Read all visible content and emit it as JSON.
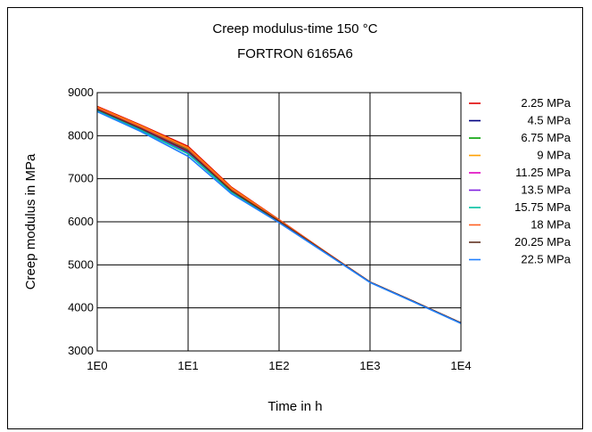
{
  "chart_data": {
    "type": "line",
    "title": "Creep modulus-time 150 °C",
    "subtitle": "FORTRON 6165A6",
    "xlabel": "Time in h",
    "ylabel": "Creep modulus in MPa",
    "x_scale": "log",
    "xlim": [
      1,
      10000
    ],
    "ylim": [
      3000,
      9000
    ],
    "x_ticks": [
      {
        "value": 1,
        "label": "1E0"
      },
      {
        "value": 10,
        "label": "1E1"
      },
      {
        "value": 100,
        "label": "1E2"
      },
      {
        "value": 1000,
        "label": "1E3"
      },
      {
        "value": 10000,
        "label": "1E4"
      }
    ],
    "y_ticks": [
      {
        "value": 3000,
        "label": "3000"
      },
      {
        "value": 4000,
        "label": "4000"
      },
      {
        "value": 5000,
        "label": "5000"
      },
      {
        "value": 6000,
        "label": "6000"
      },
      {
        "value": 7000,
        "label": "7000"
      },
      {
        "value": 8000,
        "label": "8000"
      },
      {
        "value": 9000,
        "label": "9000"
      }
    ],
    "grid": true,
    "legend_position": "right",
    "x": [
      1,
      3,
      10,
      30,
      100,
      300,
      1000,
      3000,
      10000
    ],
    "series": [
      {
        "name": "2.25 MPa",
        "color": "#e00000",
        "values": [
          8680,
          8250,
          7750,
          6800,
          6050,
          5350,
          4600,
          4150,
          3650
        ]
      },
      {
        "name": "4.5 MPa",
        "color": "#000080",
        "values": [
          8600,
          8150,
          7600,
          6700,
          6000,
          5330,
          4600,
          4150,
          3650
        ]
      },
      {
        "name": "6.75 MPa",
        "color": "#00a000",
        "values": [
          8640,
          8200,
          7680,
          6750,
          6030,
          5340,
          4600,
          4150,
          3650
        ]
      },
      {
        "name": "9 MPa",
        "color": "#ffa000",
        "values": [
          8660,
          8230,
          7720,
          6780,
          6040,
          5345,
          4600,
          4150,
          3650
        ]
      },
      {
        "name": "11.25 MPa",
        "color": "#e000c0",
        "values": [
          8620,
          8180,
          7650,
          6730,
          6020,
          5338,
          4600,
          4150,
          3650
        ]
      },
      {
        "name": "13.5 MPa",
        "color": "#8020e0",
        "values": [
          8600,
          8160,
          7620,
          6710,
          6010,
          5335,
          4600,
          4150,
          3650
        ]
      },
      {
        "name": "15.75 MPa",
        "color": "#00c0a0",
        "values": [
          8580,
          8130,
          7580,
          6690,
          5995,
          5330,
          4600,
          4150,
          3650
        ]
      },
      {
        "name": "18 MPa",
        "color": "#ff6020",
        "values": [
          8650,
          8210,
          7700,
          6760,
          6035,
          5342,
          4600,
          4150,
          3650
        ]
      },
      {
        "name": "20.25 MPa",
        "color": "#603020",
        "values": [
          8610,
          8170,
          7640,
          6720,
          6015,
          5336,
          4600,
          4150,
          3650
        ]
      },
      {
        "name": "22.5 MPa",
        "color": "#2080ff",
        "values": [
          8560,
          8100,
          7520,
          6650,
          5980,
          5320,
          4590,
          4140,
          3640
        ]
      }
    ]
  }
}
